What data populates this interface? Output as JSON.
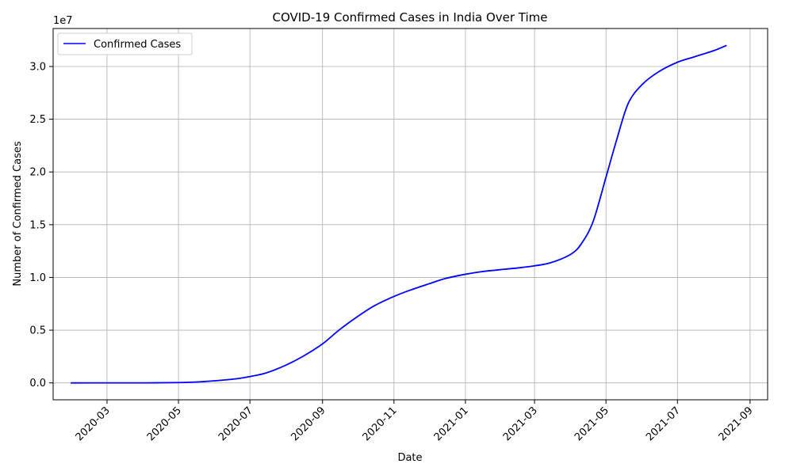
{
  "chart_data": {
    "type": "line",
    "title": "COVID-19 Confirmed Cases in India Over Time",
    "xlabel": "Date",
    "ylabel": "Number of Confirmed Cases",
    "y_offset_label": "1e7",
    "xlim": [
      "2020-01-15",
      "2021-09-16"
    ],
    "ylim": [
      -1600000,
      33600000
    ],
    "grid": true,
    "legend_position": "top-left",
    "line_color": "#0000ff",
    "x_ticks": [
      "2020-03-01",
      "2020-05-01",
      "2020-07-01",
      "2020-09-01",
      "2020-11-01",
      "2021-01-01",
      "2021-03-01",
      "2021-05-01",
      "2021-07-01",
      "2021-09-01"
    ],
    "x_tick_labels": [
      "2020-03",
      "2020-05",
      "2020-07",
      "2020-09",
      "2020-11",
      "2021-01",
      "2021-03",
      "2021-05",
      "2021-07",
      "2021-09"
    ],
    "y_ticks": [
      0,
      5000000,
      10000000,
      15000000,
      20000000,
      25000000,
      30000000
    ],
    "y_tick_labels": [
      "0.0",
      "0.5",
      "1.0",
      "1.5",
      "2.0",
      "2.5",
      "3.0"
    ],
    "series": [
      {
        "name": "Confirmed Cases",
        "x": [
          "2020-01-30",
          "2020-03-01",
          "2020-04-01",
          "2020-05-01",
          "2020-05-20",
          "2020-06-01",
          "2020-06-20",
          "2020-07-01",
          "2020-07-15",
          "2020-08-01",
          "2020-08-15",
          "2020-09-01",
          "2020-09-15",
          "2020-10-01",
          "2020-10-15",
          "2020-11-01",
          "2020-11-15",
          "2020-12-01",
          "2020-12-15",
          "2021-01-01",
          "2021-01-15",
          "2021-02-01",
          "2021-02-15",
          "2021-03-01",
          "2021-03-15",
          "2021-04-01",
          "2021-04-10",
          "2021-04-20",
          "2021-05-01",
          "2021-05-10",
          "2021-05-20",
          "2021-06-01",
          "2021-06-15",
          "2021-07-01",
          "2021-07-15",
          "2021-08-01",
          "2021-08-12"
        ],
        "values": [
          0,
          3000,
          2000,
          35000,
          110000,
          200000,
          400000,
          600000,
          950000,
          1700000,
          2500000,
          3700000,
          5000000,
          6300000,
          7300000,
          8200000,
          8800000,
          9400000,
          9900000,
          10300000,
          10550000,
          10750000,
          10900000,
          11100000,
          11400000,
          12200000,
          13200000,
          15300000,
          19500000,
          23000000,
          26500000,
          28300000,
          29500000,
          30400000,
          30900000,
          31500000,
          32000000
        ]
      }
    ]
  }
}
